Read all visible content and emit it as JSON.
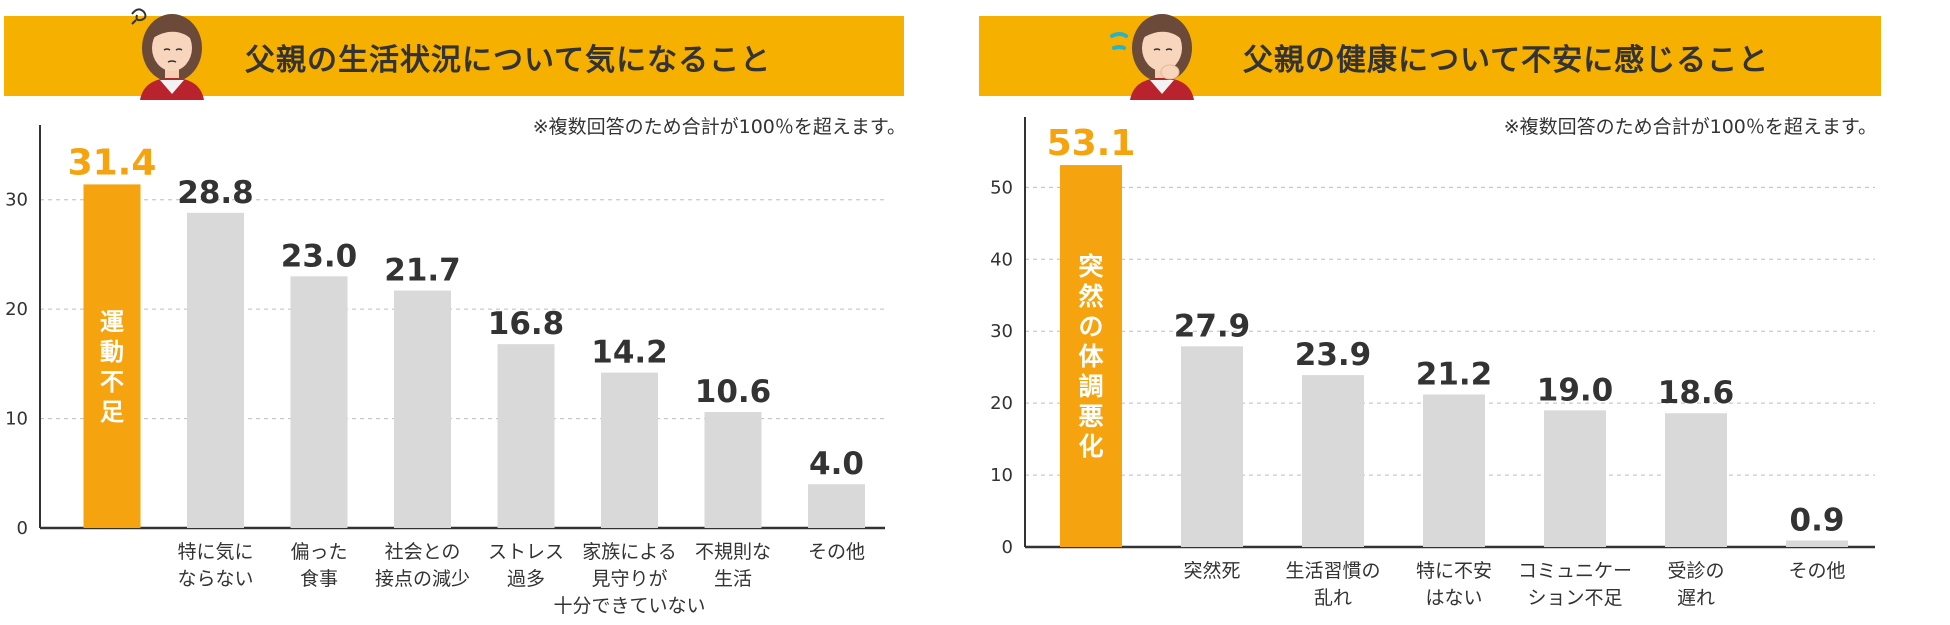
{
  "colors": {
    "banner": "#f5b000",
    "highlight": "#f5a30f",
    "bar": "#d9d9d9",
    "text": "#333333"
  },
  "left": {
    "title": "父親の生活状況について気になること",
    "note": "※複数回答のため合計が100％を超えます。",
    "avatar_icon": "worried-woman-avatar-icon"
  },
  "right": {
    "title": "父親の健康について不安に感じること",
    "note": "※複数回答のため合計が100％を超えます。",
    "avatar_icon": "anxious-woman-avatar-icon"
  },
  "chart_data": [
    {
      "type": "bar",
      "title": "父親の生活状況について気になること",
      "ylim": [
        0,
        35
      ],
      "yticks": [
        0,
        10,
        20,
        30
      ],
      "grid": true,
      "categories": [
        "運動不足",
        "特に気に\nならない",
        "偏った\n食事",
        "社会との\n接点の減少",
        "ストレス\n過多",
        "家族による\n見守りが\n十分できていない",
        "不規則な\n生活",
        "その他"
      ],
      "values": [
        31.4,
        28.8,
        23.0,
        21.7,
        16.8,
        14.2,
        10.6,
        4.0
      ],
      "value_labels": [
        "31.4",
        "28.8",
        "23.0",
        "21.7",
        "16.8",
        "14.2",
        "10.6",
        "4.0"
      ],
      "highlight_index": 0
    },
    {
      "type": "bar",
      "title": "父親の健康について不安に感じること",
      "ylim": [
        0,
        57
      ],
      "yticks": [
        0,
        10,
        20,
        30,
        40,
        50
      ],
      "grid": true,
      "categories": [
        "突然の体調悪化",
        "突然死",
        "生活習慣の\n乱れ",
        "特に不安\nはない",
        "コミュニケー\nション不足",
        "受診の\n遅れ",
        "その他"
      ],
      "values": [
        53.1,
        27.9,
        23.9,
        21.2,
        19.0,
        18.6,
        0.9
      ],
      "value_labels": [
        "53.1",
        "27.9",
        "23.9",
        "21.2",
        "19.0",
        "18.6",
        "0.9"
      ],
      "highlight_index": 0
    }
  ]
}
